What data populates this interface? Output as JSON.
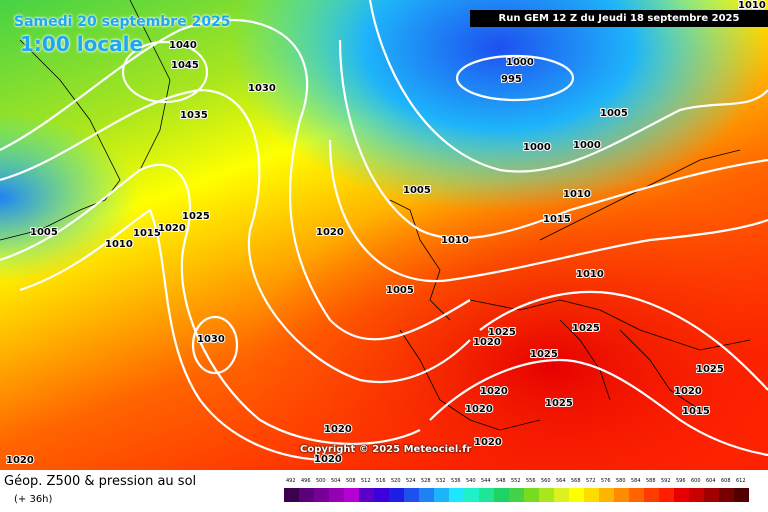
{
  "map": {
    "date_title": "Samedi 20 septembre 2025",
    "time_title": "1:00 locale",
    "run_info": "Run GEM 12 Z du Jeudi 18 septembre 2025",
    "copyright": "Copyright © 2025 Meteociel.fr",
    "pressure_labels": [
      "1040",
      "1045",
      "1030",
      "1035",
      "1000",
      "995",
      "1005",
      "1010",
      "1000",
      "1000",
      "1005",
      "1010",
      "1015",
      "1025",
      "1015",
      "1020",
      "1010",
      "1005",
      "1020",
      "1010",
      "1005",
      "1010",
      "1025",
      "1025",
      "1020",
      "1025",
      "1025",
      "1030",
      "1020",
      "1020",
      "1025",
      "1020",
      "1015",
      "1020",
      "1020",
      "1020",
      "1020"
    ],
    "colors": {
      "low": "#1e90ff",
      "mid": "#ffff00",
      "high": "#ff2000"
    }
  },
  "footer": {
    "title": "Géop. Z500 & pression au sol",
    "subtitle": "(+ 36h)",
    "scale_values": [
      "492",
      "496",
      "500",
      "504",
      "508",
      "512",
      "516",
      "520",
      "524",
      "528",
      "532",
      "536",
      "540",
      "544",
      "548",
      "552",
      "556",
      "560",
      "564",
      "568",
      "572",
      "576",
      "580",
      "584",
      "588",
      "592",
      "596",
      "600",
      "604",
      "608",
      "612"
    ],
    "scale_colors": [
      "#3c0050",
      "#5a0078",
      "#780096",
      "#9600b4",
      "#b400d2",
      "#5a00c8",
      "#3c00dc",
      "#1e1ee6",
      "#1e50f0",
      "#1e82f5",
      "#1eb4fa",
      "#1ee6ff",
      "#1ef0c8",
      "#1ee696",
      "#1ed264",
      "#46d246",
      "#78dc1e",
      "#aae61e",
      "#dcf01e",
      "#ffff00",
      "#ffdc00",
      "#ffb400",
      "#ff8c00",
      "#ff6400",
      "#ff3c00",
      "#ff1e00",
      "#e60000",
      "#c80000",
      "#a00000",
      "#780000",
      "#500000"
    ]
  }
}
